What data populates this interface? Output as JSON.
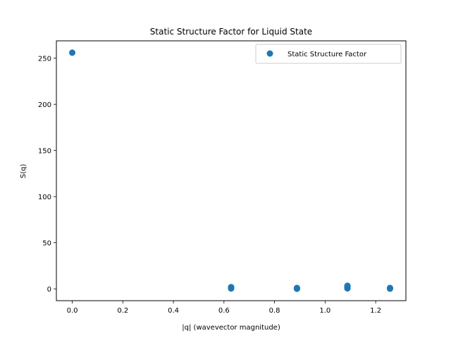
{
  "chart_data": {
    "type": "scatter",
    "title": "Static Structure Factor for Liquid State",
    "xlabel": "|q| (wavevector magnitude)",
    "ylabel": "S(q)",
    "xlim": [
      -0.0628,
      1.3195
    ],
    "ylim": [
      -12.8,
      268.8
    ],
    "xticks": [
      0.0,
      0.2,
      0.4,
      0.6,
      0.8,
      1.0,
      1.2
    ],
    "xtick_labels": [
      "0.0",
      "0.2",
      "0.4",
      "0.6",
      "0.8",
      "1.0",
      "1.2"
    ],
    "yticks": [
      0,
      50,
      100,
      150,
      200,
      250
    ],
    "ytick_labels": [
      "0",
      "50",
      "100",
      "150",
      "200",
      "250"
    ],
    "grid": false,
    "legend_position": "top-right",
    "color": "#1f77b4",
    "series": [
      {
        "name": "Static Structure Factor",
        "points": [
          {
            "x": 0.0,
            "y": 256.0
          },
          {
            "x": 0.6283,
            "y": 0.4
          },
          {
            "x": 0.6283,
            "y": 0.9
          },
          {
            "x": 0.6283,
            "y": 1.4
          },
          {
            "x": 0.6283,
            "y": 1.9
          },
          {
            "x": 0.8886,
            "y": 0.1
          },
          {
            "x": 0.8886,
            "y": 0.3
          },
          {
            "x": 0.8886,
            "y": 0.5
          },
          {
            "x": 0.8886,
            "y": 0.7
          },
          {
            "x": 0.8886,
            "y": 1.0
          },
          {
            "x": 1.0883,
            "y": 0.5
          },
          {
            "x": 1.0883,
            "y": 1.2
          },
          {
            "x": 1.0883,
            "y": 2.0
          },
          {
            "x": 1.0883,
            "y": 2.8
          },
          {
            "x": 1.0883,
            "y": 3.4
          },
          {
            "x": 1.2566,
            "y": 0.2
          },
          {
            "x": 1.2566,
            "y": 0.6
          },
          {
            "x": 1.2566,
            "y": 1.0
          }
        ]
      }
    ]
  }
}
